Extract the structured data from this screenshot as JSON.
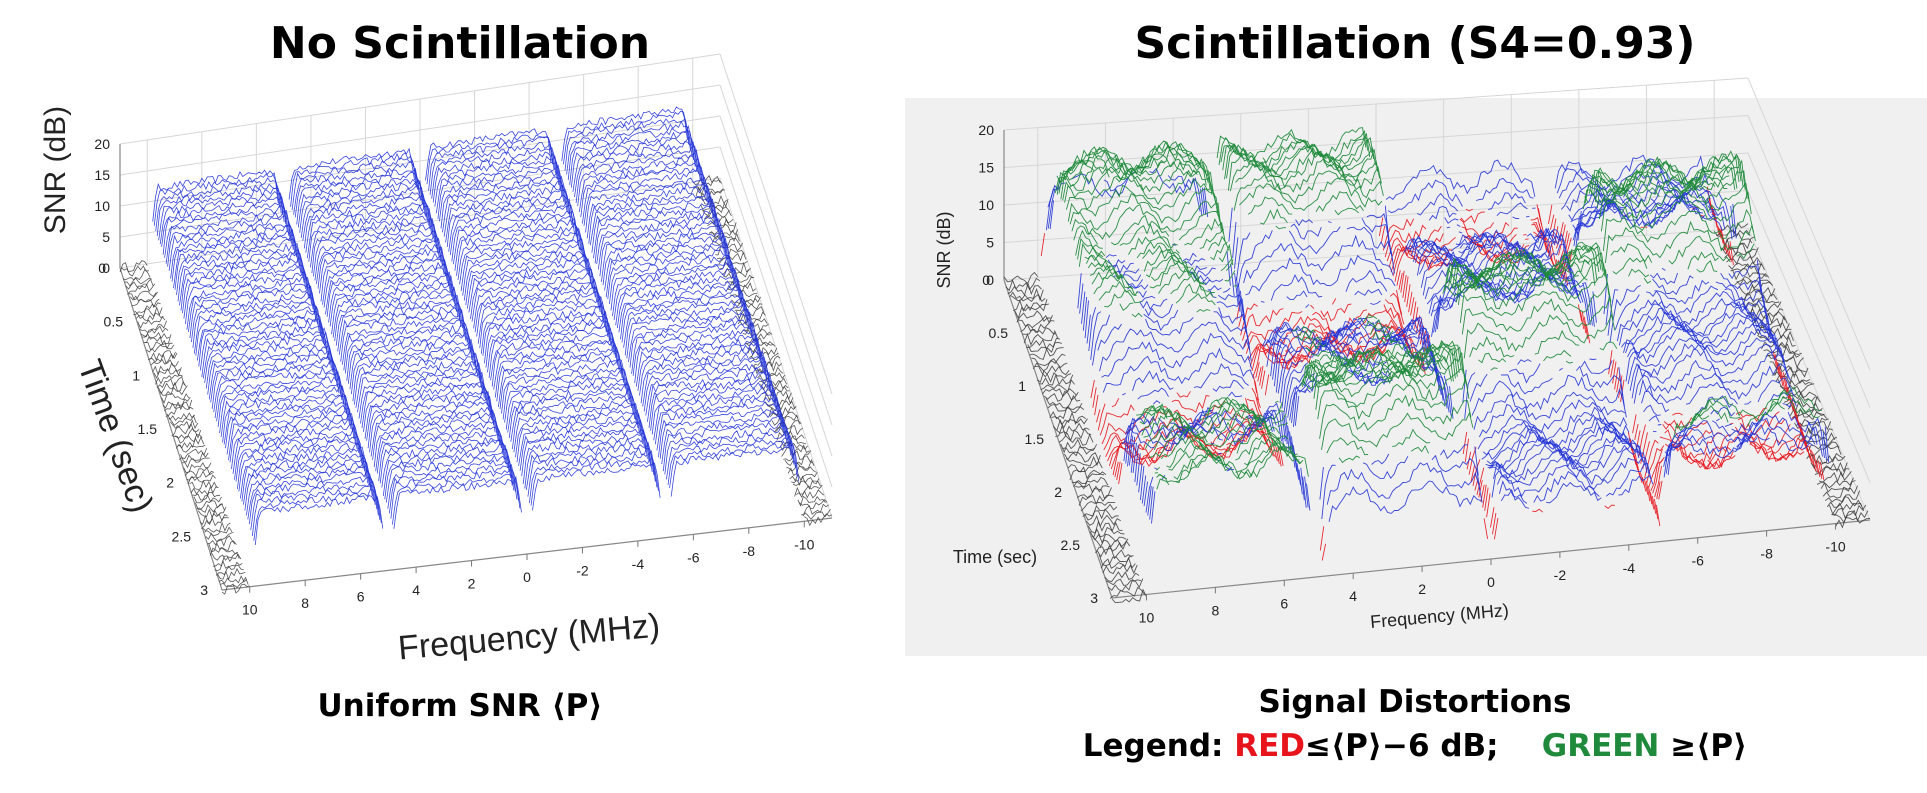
{
  "chart_data": [
    {
      "type": "surface3d",
      "title": "No Scintillation",
      "xlabel": "Frequency (MHz)",
      "ylabel": "Time (sec)",
      "zlabel": "SNR (dB)",
      "x_ticks": [
        10,
        8,
        6,
        4,
        2,
        0,
        -2,
        -4,
        -6,
        -8,
        -10
      ],
      "y_ticks": [
        0,
        0.5,
        1,
        1.5,
        2,
        2.5,
        3
      ],
      "z_ticks": [
        0,
        5,
        10,
        15,
        20
      ],
      "xlim": [
        -11,
        11
      ],
      "ylim": [
        0,
        3
      ],
      "zlim": [
        0,
        20
      ],
      "channel_centers_mhz": [
        7.5,
        2.5,
        -2.5,
        -7.5
      ],
      "mean_snr_db": 12,
      "s4": 0,
      "caption": "Uniform SNR ⟨P⟩",
      "colors": {
        "noise": "#3a3a3a",
        "normal": "#2233d6",
        "low": "#e8141c",
        "high": "#1f8a3b"
      }
    },
    {
      "type": "surface3d",
      "title": "Scintillation (S4=0.93)",
      "xlabel": "Frequency (MHz)",
      "ylabel": "Time (sec)",
      "zlabel": "SNR (dB)",
      "x_ticks": [
        10,
        8,
        6,
        4,
        2,
        0,
        -2,
        -4,
        -6,
        -8,
        -10
      ],
      "y_ticks": [
        0,
        0.5,
        1,
        1.5,
        2,
        2.5,
        3
      ],
      "z_ticks": [
        0,
        5,
        10,
        15,
        20
      ],
      "xlim": [
        -11,
        11
      ],
      "ylim": [
        0,
        3
      ],
      "zlim": [
        0,
        20
      ],
      "channel_centers_mhz": [
        7.5,
        2.5,
        -2.5,
        -7.5
      ],
      "mean_snr_db": 12,
      "s4": 0.93,
      "caption_line1": "Signal Distortions",
      "legend": {
        "prefix": "Legend: ",
        "red_word": "RED",
        "red_rule": "≤⟨P⟩−6 dB;",
        "green_word": "GREEN",
        "green_rule": "≥⟨P⟩"
      },
      "colors": {
        "noise": "#3a3a3a",
        "normal": "#2233d6",
        "low": "#e8141c",
        "high": "#1f8a3b"
      }
    }
  ]
}
